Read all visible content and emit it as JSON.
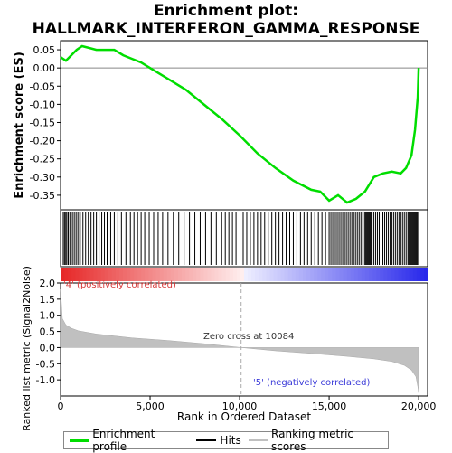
{
  "chart_data": {
    "type": "line",
    "title_lines": [
      "Enrichment plot:",
      "HALLMARK_INTERFERON_GAMMA_RESPONSE"
    ],
    "xlabel": "Rank in Ordered Dataset",
    "ylabel_top": "Enrichment score (ES)",
    "ylabel_bottom": "Ranked list metric (Signal2Noise)",
    "xlim": [
      0,
      20500
    ],
    "x_ticks": [
      0,
      5000,
      10000,
      15000,
      20000
    ],
    "x_tick_labels": [
      "0",
      "5,000",
      "10,000",
      "15,000",
      "20,000"
    ],
    "es_ylim": [
      -0.39,
      0.075
    ],
    "es_ticks": [
      0.05,
      0.0,
      -0.05,
      -0.1,
      -0.15,
      -0.2,
      -0.25,
      -0.3,
      -0.35
    ],
    "es_tick_labels": [
      "0.05",
      "0.00",
      "-0.05",
      "-0.10",
      "-0.15",
      "-0.20",
      "-0.25",
      "-0.30",
      "-0.35"
    ],
    "metric_ylim": [
      -1.5,
      2.0
    ],
    "metric_ticks": [
      2.0,
      1.5,
      1.0,
      0.5,
      0.0,
      -0.5,
      -1.0
    ],
    "metric_tick_labels": [
      "2.0",
      "1.5",
      "1.0",
      "0.5",
      "0.0",
      "-0.5",
      "-1.0"
    ],
    "enrichment_profile": {
      "x": [
        0,
        300,
        600,
        900,
        1200,
        1600,
        2000,
        2500,
        3000,
        3500,
        4000,
        4500,
        5000,
        5500,
        6000,
        7000,
        8000,
        9000,
        10000,
        11000,
        12000,
        13000,
        14000,
        14500,
        15000,
        15500,
        16000,
        16500,
        17000,
        17500,
        18000,
        18500,
        19000,
        19300,
        19600,
        19800,
        19950,
        20000
      ],
      "y": [
        0.03,
        0.02,
        0.035,
        0.05,
        0.06,
        0.055,
        0.05,
        0.05,
        0.05,
        0.035,
        0.025,
        0.015,
        0.0,
        -0.015,
        -0.03,
        -0.06,
        -0.1,
        -0.14,
        -0.185,
        -0.235,
        -0.275,
        -0.31,
        -0.335,
        -0.34,
        -0.365,
        -0.35,
        -0.37,
        -0.36,
        -0.34,
        -0.3,
        -0.29,
        -0.285,
        -0.29,
        -0.275,
        -0.24,
        -0.17,
        -0.08,
        0.0
      ]
    },
    "hits": [
      150,
      220,
      290,
      350,
      430,
      520,
      600,
      700,
      800,
      900,
      1000,
      1100,
      1250,
      1400,
      1550,
      1700,
      1850,
      2000,
      2150,
      2300,
      2450,
      2600,
      2800,
      3000,
      3200,
      3400,
      3650,
      3900,
      4100,
      4300,
      4500,
      4700,
      4950,
      5200,
      5450,
      5700,
      6000,
      6300,
      6600,
      6900,
      7200,
      7500,
      7800,
      8100,
      8400,
      8700,
      9000,
      9200,
      9400,
      9600,
      9800,
      10200,
      10400,
      10600,
      10800,
      11000,
      11200,
      11400,
      11600,
      11800,
      12000,
      12200,
      12400,
      12600,
      12800,
      13000,
      13200,
      13400,
      13600,
      13800,
      14000,
      14200,
      14400,
      14600,
      14800,
      15000,
      15100,
      15200,
      15300,
      15400,
      15500,
      15600,
      15700,
      15800,
      15900,
      16000,
      16100,
      16200,
      16300,
      16400,
      16500,
      16600,
      16700,
      16800,
      16900,
      17000,
      17050,
      17100,
      17150,
      17200,
      17250,
      17300,
      17350,
      17400,
      17500,
      17600,
      17700,
      17800,
      17900,
      18000,
      18100,
      18200,
      18300,
      18400,
      18500,
      18600,
      18700,
      18800,
      18900,
      19000,
      19100,
      19200,
      19300,
      19400,
      19450,
      19500,
      19550,
      19600,
      19650,
      19700,
      19750,
      19800,
      19850,
      19900,
      19950
    ],
    "ranked_metric": {
      "x": [
        0,
        100,
        300,
        600,
        1000,
        2000,
        4000,
        6000,
        8000,
        10084,
        12000,
        14000,
        16000,
        17500,
        18500,
        19200,
        19600,
        19850,
        19950,
        20000
      ],
      "y": [
        1.8,
        0.9,
        0.7,
        0.6,
        0.52,
        0.42,
        0.3,
        0.22,
        0.12,
        0.0,
        -0.1,
        -0.18,
        -0.27,
        -0.35,
        -0.43,
        -0.55,
        -0.7,
        -0.9,
        -1.2,
        -1.4
      ]
    },
    "zero_cross_label": "Zero cross at 10084",
    "zero_cross_x": 10084,
    "pos_label": "'4' (positively correlated)",
    "neg_label": "'5' (negatively correlated)",
    "legend": [
      {
        "label": "Enrichment profile",
        "color": "#00dd00"
      },
      {
        "label": "Hits",
        "color": "#000000"
      },
      {
        "label": "Ranking metric scores",
        "color": "#c0c0c0"
      }
    ]
  }
}
